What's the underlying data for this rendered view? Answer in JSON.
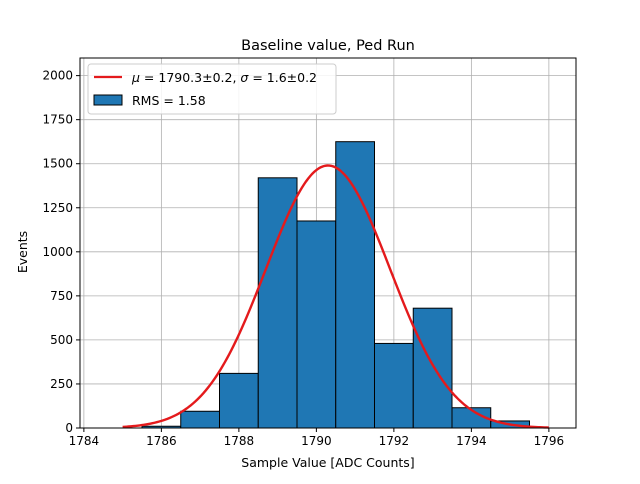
{
  "chart_data": {
    "type": "bar",
    "title": "Baseline value, Ped Run",
    "xlabel": "Sample Value [ADC Counts]",
    "ylabel": "Events",
    "xlim": [
      1783.9,
      1796.7
    ],
    "ylim": [
      0,
      2100
    ],
    "grid": true,
    "legend_position": "top-left",
    "xticks": [
      1784,
      1786,
      1788,
      1790,
      1792,
      1794,
      1796
    ],
    "yticks": [
      0,
      250,
      500,
      750,
      1000,
      1250,
      1500,
      1750,
      2000
    ],
    "series": [
      {
        "name": "RMS = 1.58",
        "kind": "histogram",
        "color": "#1f77b4",
        "bins": [
          {
            "left": 1784.5,
            "right": 1785.5,
            "value": 0
          },
          {
            "left": 1785.5,
            "right": 1786.5,
            "value": 10
          },
          {
            "left": 1786.5,
            "right": 1787.5,
            "value": 95
          },
          {
            "left": 1787.5,
            "right": 1788.5,
            "value": 310
          },
          {
            "left": 1788.5,
            "right": 1789.5,
            "value": 1420
          },
          {
            "left": 1789.5,
            "right": 1790.5,
            "value": 1175
          },
          {
            "left": 1790.5,
            "right": 1791.5,
            "value": 1625
          },
          {
            "left": 1791.5,
            "right": 1792.5,
            "value": 480
          },
          {
            "left": 1792.5,
            "right": 1793.5,
            "value": 680
          },
          {
            "left": 1793.5,
            "right": 1794.5,
            "value": 115
          },
          {
            "left": 1794.5,
            "right": 1795.5,
            "value": 40
          }
        ]
      },
      {
        "name": "μ = 1790.3±0.2, σ = 1.6±0.2",
        "kind": "gaussian-fit",
        "color": "#e41a1c",
        "mu": 1790.3,
        "sigma": 1.6,
        "amplitude": 1490,
        "x_range": [
          1785.0,
          1796.0
        ]
      }
    ],
    "legend": {
      "fit_label": {
        "mu_sym": "μ",
        "mu_text": " = 1790.3±0.2, ",
        "sigma_sym": "σ",
        "sigma_text": " = 1.6±0.2"
      },
      "hist_label": "RMS = 1.58"
    }
  }
}
